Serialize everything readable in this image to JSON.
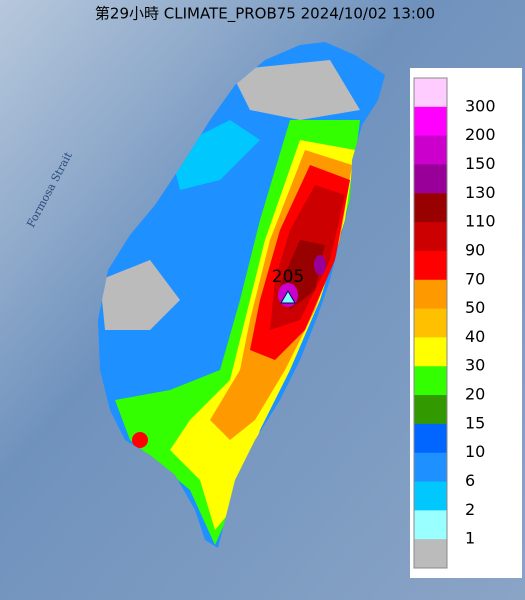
{
  "title": "第29小時  CLIMATE_PROB75 2024/10/02 13:00",
  "sea_label": "Formosa Strait",
  "max_label": "205",
  "legend": {
    "labels": [
      "300",
      "200",
      "150",
      "130",
      "110",
      "90",
      "70",
      "50",
      "40",
      "30",
      "20",
      "15",
      "10",
      "6",
      "2",
      "1"
    ],
    "colors": [
      "#ffccff",
      "#ff00ff",
      "#cc00cc",
      "#990099",
      "#990000",
      "#cc0000",
      "#ff0000",
      "#ff9900",
      "#ffc000",
      "#ffff00",
      "#33ff00",
      "#339900",
      "#0066ff",
      "#1e90ff",
      "#00c8ff",
      "#99ffff",
      "#bbbbbb"
    ]
  }
}
